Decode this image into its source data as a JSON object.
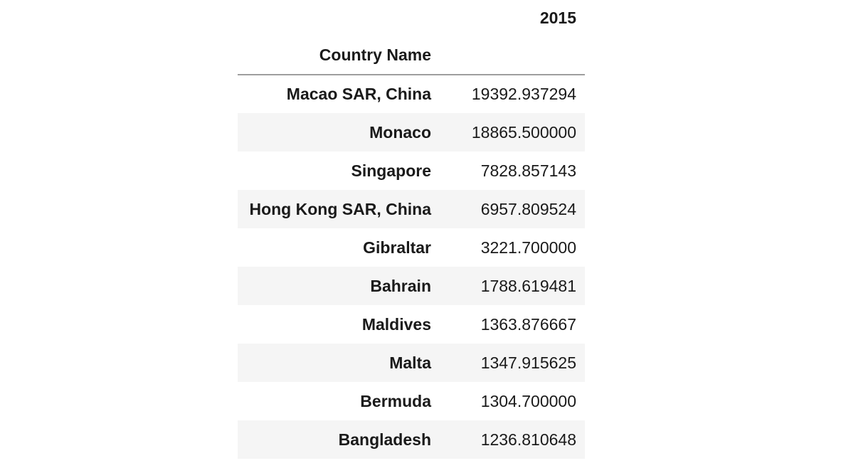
{
  "table": {
    "column_header": "2015",
    "index_name": "Country Name",
    "rows": [
      {
        "country": "Macao SAR, China",
        "value": "19392.937294"
      },
      {
        "country": "Monaco",
        "value": "18865.500000"
      },
      {
        "country": "Singapore",
        "value": "7828.857143"
      },
      {
        "country": "Hong Kong SAR, China",
        "value": "6957.809524"
      },
      {
        "country": "Gibraltar",
        "value": "3221.700000"
      },
      {
        "country": "Bahrain",
        "value": "1788.619481"
      },
      {
        "country": "Maldives",
        "value": "1363.876667"
      },
      {
        "country": "Malta",
        "value": "1347.915625"
      },
      {
        "country": "Bermuda",
        "value": "1304.700000"
      },
      {
        "country": "Bangladesh",
        "value": "1236.810648"
      }
    ]
  }
}
